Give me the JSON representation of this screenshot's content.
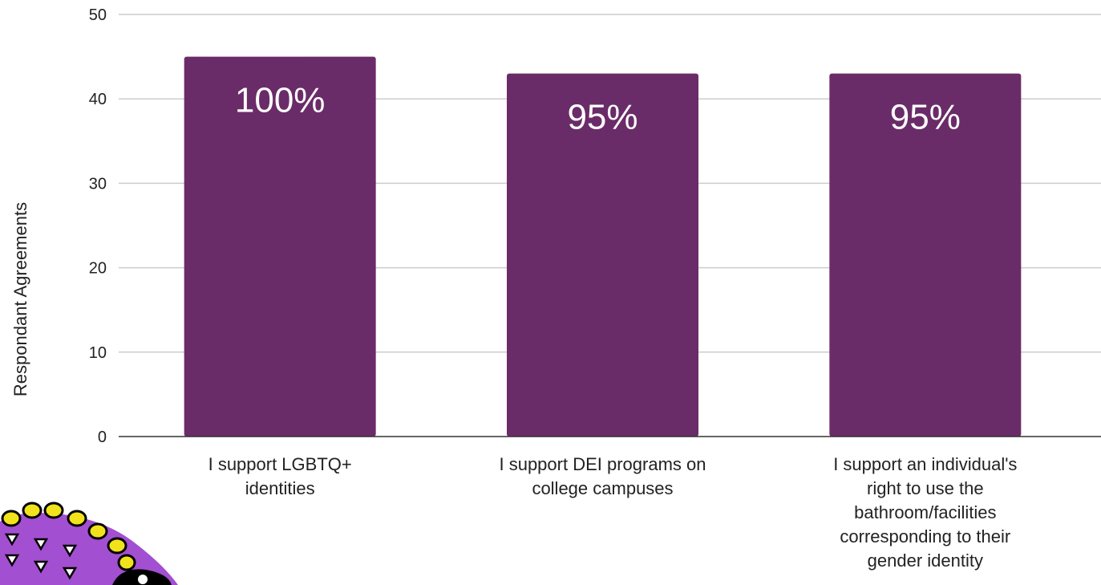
{
  "chart_data": {
    "type": "bar",
    "ylabel": "Respondant Agreements",
    "ylim": [
      0,
      50
    ],
    "yticks": [
      0,
      10,
      20,
      30,
      40,
      50
    ],
    "grid": true,
    "categories": [
      [
        "I support LGBTQ+",
        "identities"
      ],
      [
        "I support DEI programs on",
        "college campuses"
      ],
      [
        "I support an individual's",
        "right to use the",
        "bathroom/facilities",
        "corresponding to their",
        "gender identity"
      ]
    ],
    "values": [
      45,
      43,
      43
    ],
    "data_labels": [
      "100%",
      "95%",
      "95%"
    ],
    "bar_color": "#6a2c68"
  },
  "mascot": {
    "icon": "purple-spiky-creature-icon",
    "body_color": "#a34fd1",
    "spike_color": "#f2e21c"
  }
}
